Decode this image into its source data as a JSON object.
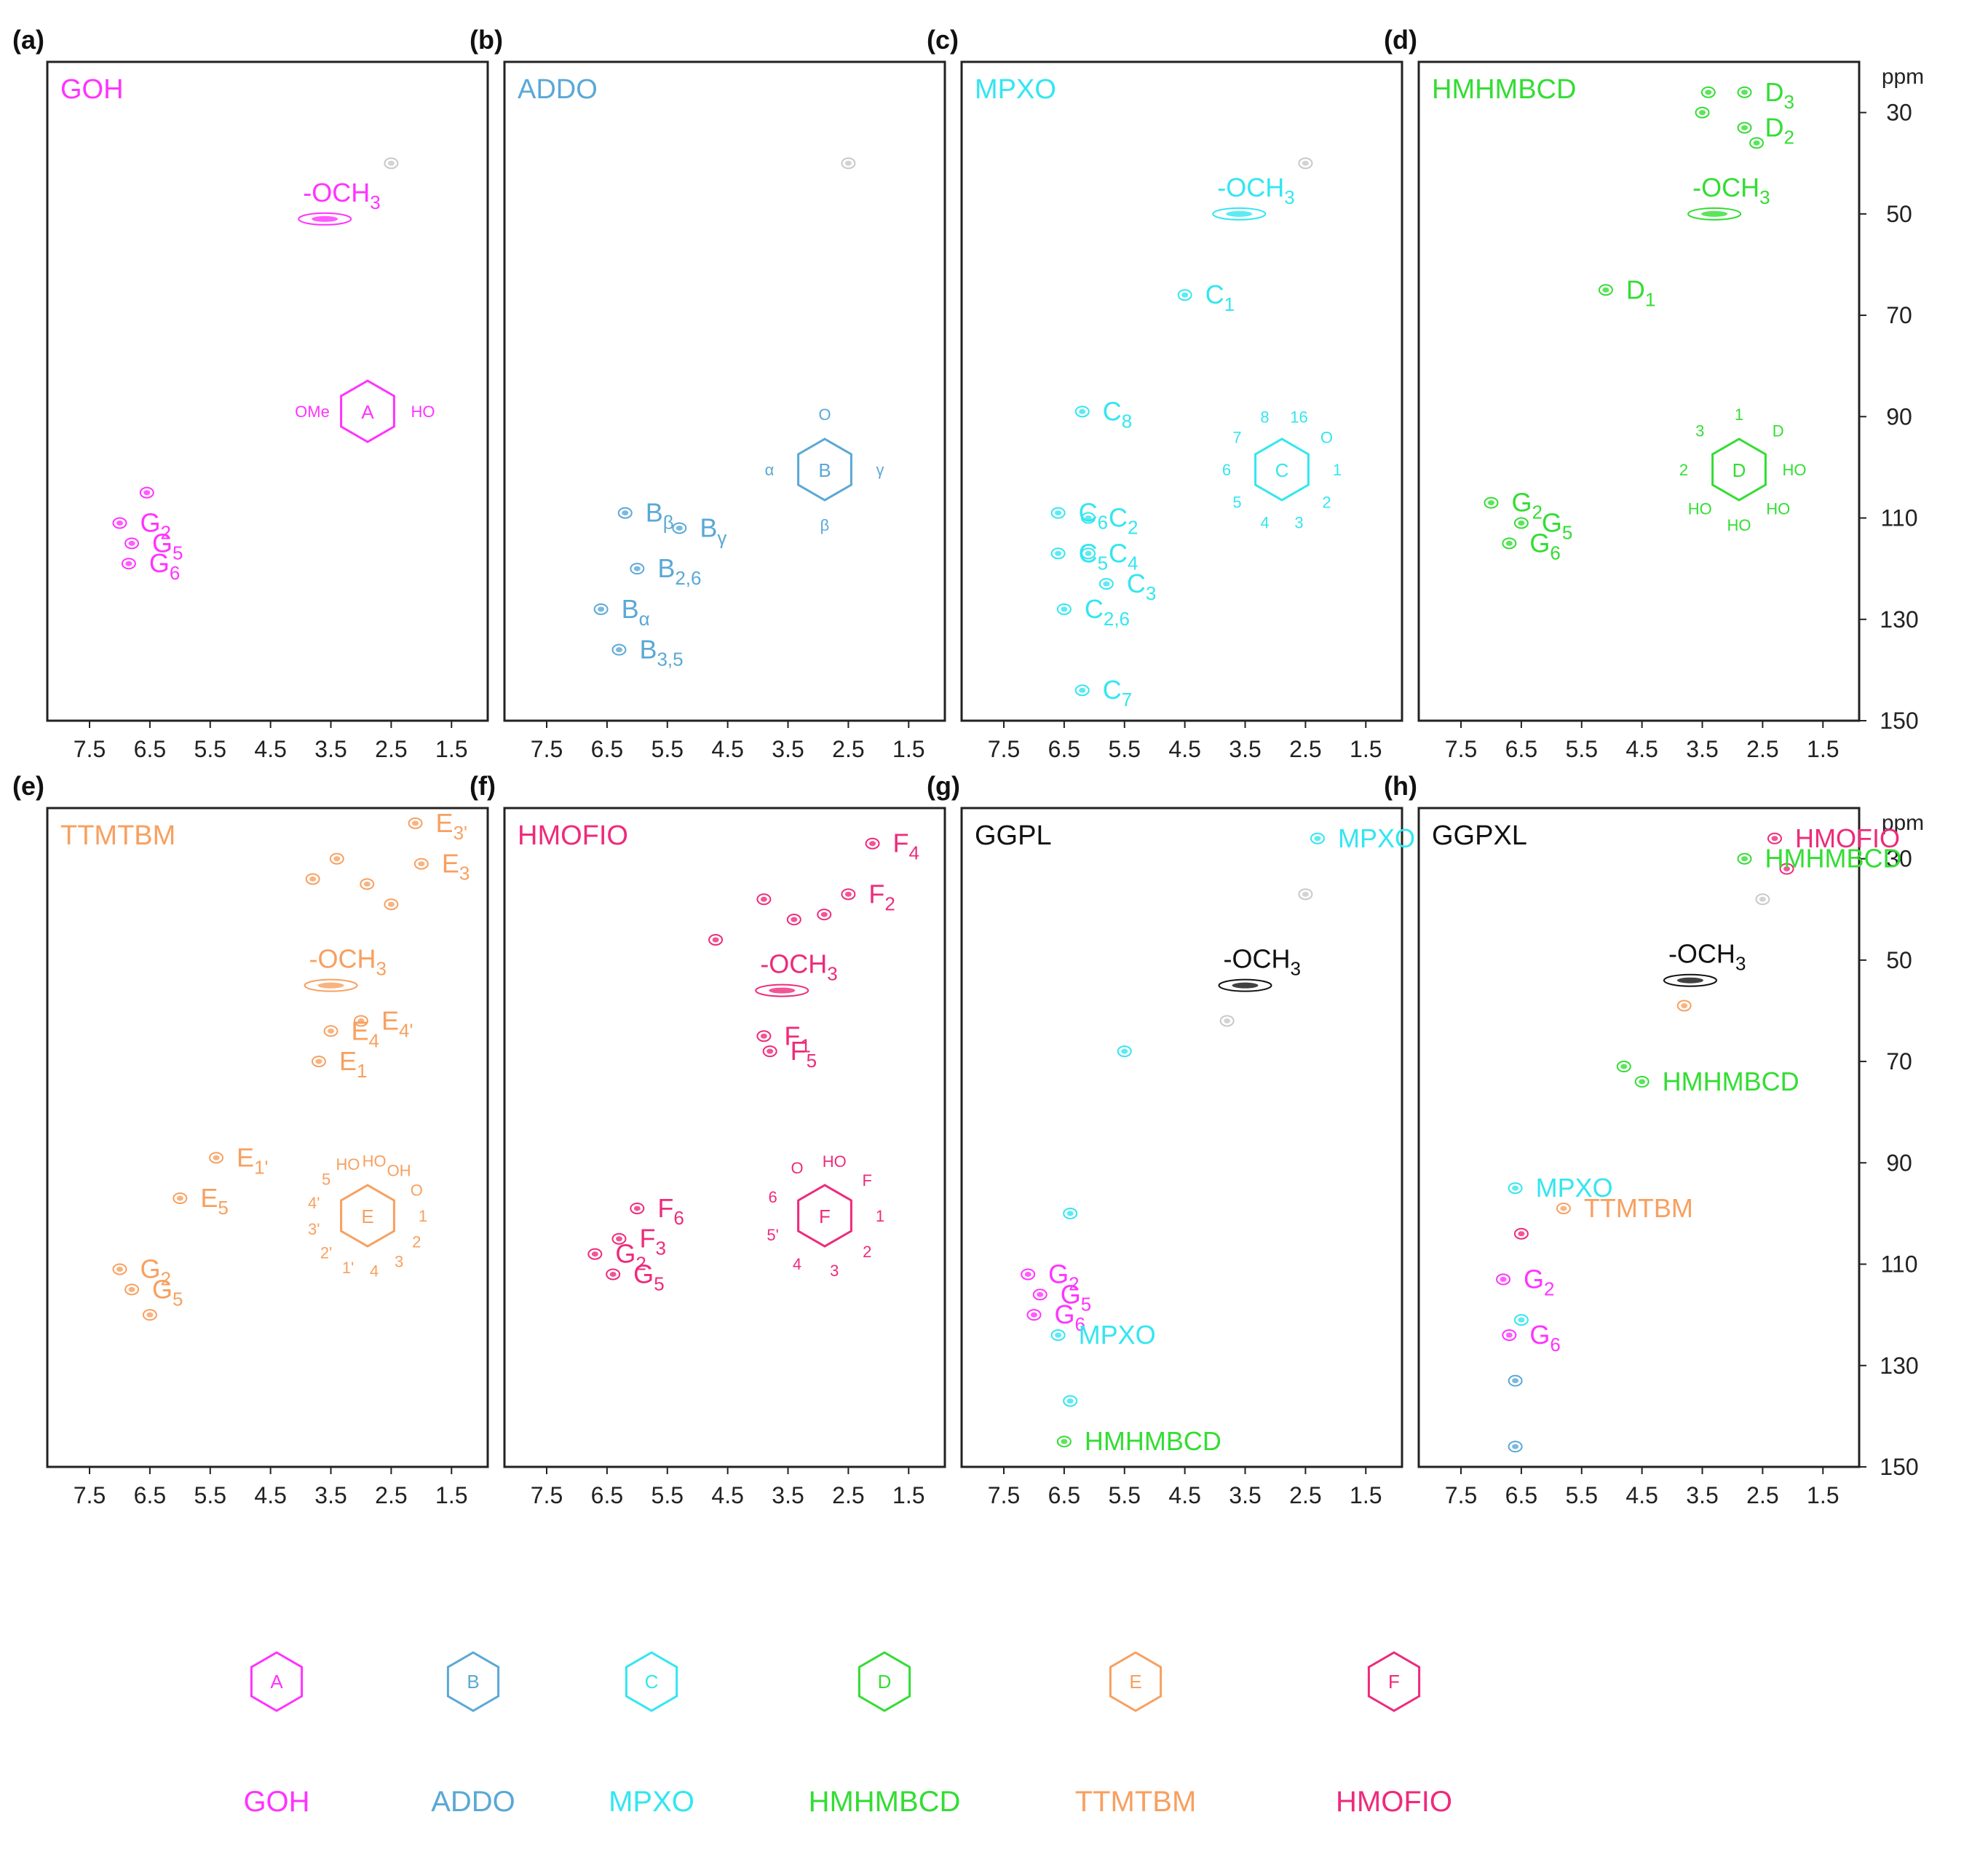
{
  "figure": {
    "ppm_unit": "ppm",
    "x_ticks": [
      7.5,
      6.5,
      5.5,
      4.5,
      3.5,
      2.5,
      1.5
    ],
    "y_ticks": [
      30,
      50,
      70,
      90,
      110,
      130,
      150
    ]
  },
  "colors": {
    "GOH": "#ff33ff",
    "ADDO": "#5aa8d6",
    "MPXO": "#33e6f0",
    "HMHMBCD": "#33dd33",
    "TTMTBM": "#f7a060",
    "HMOFIO": "#ee2a7b",
    "GGPL": "#111111",
    "GGPXL": "#111111",
    "solvent": "#c8c8c8"
  },
  "chart_data": [
    {
      "type": "scatter",
      "panel": "(a)",
      "title": "GOH",
      "xlabel": "",
      "ylabel": "ppm",
      "xlim": [
        8.2,
        0.9
      ],
      "ylim": [
        20,
        150
      ],
      "structure_label": "A",
      "structure_text": [
        "HO",
        "OMe"
      ],
      "peaks": [
        {
          "label": "-OCH3",
          "x": 3.6,
          "y": 51,
          "color": "GOH"
        },
        {
          "label": "G2",
          "x": 7.0,
          "y": 111,
          "color": "GOH"
        },
        {
          "label": "G5",
          "x": 6.8,
          "y": 115,
          "color": "GOH"
        },
        {
          "label": "G6",
          "x": 6.85,
          "y": 119,
          "color": "GOH"
        },
        {
          "label": "",
          "x": 6.55,
          "y": 105,
          "color": "GOH"
        },
        {
          "label": "",
          "x": 2.5,
          "y": 40,
          "color": "solvent"
        }
      ]
    },
    {
      "type": "scatter",
      "panel": "(b)",
      "title": "ADDO",
      "xlim": [
        8.2,
        0.9
      ],
      "ylim": [
        20,
        150
      ],
      "structure_label": "B",
      "structure_text": [
        "γ",
        "β",
        "α",
        "O"
      ],
      "peaks": [
        {
          "label": "Bβ",
          "x": 6.2,
          "y": 109,
          "color": "ADDO"
        },
        {
          "label": "Bγ",
          "x": 5.3,
          "y": 112,
          "color": "ADDO"
        },
        {
          "label": "B2,6",
          "x": 6.0,
          "y": 120,
          "color": "ADDO"
        },
        {
          "label": "Bα",
          "x": 6.6,
          "y": 128,
          "color": "ADDO"
        },
        {
          "label": "B3,5",
          "x": 6.3,
          "y": 136,
          "color": "ADDO"
        },
        {
          "label": "",
          "x": 2.5,
          "y": 40,
          "color": "solvent"
        }
      ]
    },
    {
      "type": "scatter",
      "panel": "(c)",
      "title": "MPXO",
      "xlim": [
        8.2,
        0.9
      ],
      "ylim": [
        20,
        150
      ],
      "structure_label": "C",
      "structure_text": [
        "1",
        "2",
        "3",
        "4",
        "5",
        "6",
        "7",
        "8",
        "16",
        "O"
      ],
      "peaks": [
        {
          "label": "-OCH3",
          "x": 3.6,
          "y": 50,
          "color": "MPXO"
        },
        {
          "label": "C1",
          "x": 4.5,
          "y": 66,
          "color": "MPXO"
        },
        {
          "label": "C8",
          "x": 6.2,
          "y": 89,
          "color": "MPXO"
        },
        {
          "label": "C6",
          "x": 6.6,
          "y": 109,
          "color": "MPXO"
        },
        {
          "label": "C2",
          "x": 6.1,
          "y": 110,
          "color": "MPXO"
        },
        {
          "label": "C5",
          "x": 6.6,
          "y": 117,
          "color": "MPXO"
        },
        {
          "label": "C4",
          "x": 6.1,
          "y": 117,
          "color": "MPXO"
        },
        {
          "label": "C3",
          "x": 5.8,
          "y": 123,
          "color": "MPXO"
        },
        {
          "label": "C2,6",
          "x": 6.5,
          "y": 128,
          "color": "MPXO"
        },
        {
          "label": "C7",
          "x": 6.2,
          "y": 144,
          "color": "MPXO"
        },
        {
          "label": "",
          "x": 2.5,
          "y": 40,
          "color": "solvent"
        }
      ]
    },
    {
      "type": "scatter",
      "panel": "(d)",
      "title": "HMHMBCD",
      "xlim": [
        8.2,
        0.9
      ],
      "ylim": [
        20,
        150
      ],
      "structure_label": "D",
      "structure_text": [
        "HO",
        "HO",
        "HO",
        "HO",
        "2",
        "3",
        "1",
        "D"
      ],
      "peaks": [
        {
          "label": "D3",
          "x": 2.8,
          "y": 26,
          "color": "HMHMBCD"
        },
        {
          "label": "D2",
          "x": 2.8,
          "y": 33,
          "color": "HMHMBCD"
        },
        {
          "label": "",
          "x": 3.4,
          "y": 26,
          "color": "HMHMBCD"
        },
        {
          "label": "",
          "x": 3.5,
          "y": 30,
          "color": "HMHMBCD"
        },
        {
          "label": "",
          "x": 2.6,
          "y": 36,
          "color": "HMHMBCD"
        },
        {
          "label": "-OCH3",
          "x": 3.3,
          "y": 50,
          "color": "HMHMBCD"
        },
        {
          "label": "D1",
          "x": 5.1,
          "y": 65,
          "color": "HMHMBCD"
        },
        {
          "label": "G2",
          "x": 7.0,
          "y": 107,
          "color": "HMHMBCD"
        },
        {
          "label": "G5",
          "x": 6.5,
          "y": 111,
          "color": "HMHMBCD"
        },
        {
          "label": "G6",
          "x": 6.7,
          "y": 115,
          "color": "HMHMBCD"
        }
      ]
    },
    {
      "type": "scatter",
      "panel": "(e)",
      "title": "TTMTBM",
      "xlim": [
        8.2,
        0.9
      ],
      "ylim": [
        20,
        150
      ],
      "structure_label": "E",
      "structure_text": [
        "1",
        "2",
        "3",
        "4",
        "1'",
        "2'",
        "3'",
        "4'",
        "5",
        "HO",
        "HO",
        "OH",
        "O"
      ],
      "peaks": [
        {
          "label": "E3'",
          "x": 2.1,
          "y": 23,
          "color": "TTMTBM"
        },
        {
          "label": "E3",
          "x": 2.0,
          "y": 31,
          "color": "TTMTBM"
        },
        {
          "label": "",
          "x": 3.4,
          "y": 30,
          "color": "TTMTBM"
        },
        {
          "label": "",
          "x": 3.8,
          "y": 34,
          "color": "TTMTBM"
        },
        {
          "label": "",
          "x": 2.9,
          "y": 35,
          "color": "TTMTBM"
        },
        {
          "label": "",
          "x": 2.5,
          "y": 39,
          "color": "TTMTBM"
        },
        {
          "label": "-OCH3",
          "x": 3.5,
          "y": 55,
          "color": "TTMTBM"
        },
        {
          "label": "E4",
          "x": 3.5,
          "y": 64,
          "color": "TTMTBM"
        },
        {
          "label": "E4'",
          "x": 3.0,
          "y": 62,
          "color": "TTMTBM"
        },
        {
          "label": "E1",
          "x": 3.7,
          "y": 70,
          "color": "TTMTBM"
        },
        {
          "label": "E1'",
          "x": 5.4,
          "y": 89,
          "color": "TTMTBM"
        },
        {
          "label": "E5",
          "x": 6.0,
          "y": 97,
          "color": "TTMTBM"
        },
        {
          "label": "G2",
          "x": 7.0,
          "y": 111,
          "color": "TTMTBM"
        },
        {
          "label": "G5",
          "x": 6.8,
          "y": 115,
          "color": "TTMTBM"
        },
        {
          "label": "",
          "x": 6.5,
          "y": 120,
          "color": "TTMTBM"
        }
      ]
    },
    {
      "type": "scatter",
      "panel": "(f)",
      "title": "HMOFIO",
      "xlim": [
        8.2,
        0.9
      ],
      "ylim": [
        20,
        150
      ],
      "structure_label": "F",
      "structure_text": [
        "1",
        "2",
        "3",
        "4",
        "5'",
        "6",
        "O",
        "HO",
        "F"
      ],
      "peaks": [
        {
          "label": "F4",
          "x": 2.1,
          "y": 27,
          "color": "HMOFIO"
        },
        {
          "label": "F2",
          "x": 2.5,
          "y": 37,
          "color": "HMOFIO"
        },
        {
          "label": "",
          "x": 3.9,
          "y": 38,
          "color": "HMOFIO"
        },
        {
          "label": "",
          "x": 3.4,
          "y": 42,
          "color": "HMOFIO"
        },
        {
          "label": "",
          "x": 2.9,
          "y": 41,
          "color": "HMOFIO"
        },
        {
          "label": "",
          "x": 4.7,
          "y": 46,
          "color": "HMOFIO"
        },
        {
          "label": "-OCH3",
          "x": 3.6,
          "y": 56,
          "color": "HMOFIO"
        },
        {
          "label": "F1",
          "x": 3.9,
          "y": 65,
          "color": "HMOFIO"
        },
        {
          "label": "F5",
          "x": 3.8,
          "y": 68,
          "color": "HMOFIO"
        },
        {
          "label": "F6",
          "x": 6.0,
          "y": 99,
          "color": "HMOFIO"
        },
        {
          "label": "F3",
          "x": 6.3,
          "y": 105,
          "color": "HMOFIO"
        },
        {
          "label": "G2",
          "x": 6.7,
          "y": 108,
          "color": "HMOFIO"
        },
        {
          "label": "G5",
          "x": 6.4,
          "y": 112,
          "color": "HMOFIO"
        }
      ]
    },
    {
      "type": "scatter",
      "panel": "(g)",
      "title": "GGPL",
      "xlim": [
        8.2,
        0.9
      ],
      "ylim": [
        20,
        150
      ],
      "peaks": [
        {
          "label": "MPXO",
          "x": 2.3,
          "y": 26,
          "color": "MPXO"
        },
        {
          "label": "-OCH3",
          "x": 3.5,
          "y": 55,
          "color": "GGPL"
        },
        {
          "label": "",
          "x": 2.5,
          "y": 37,
          "color": "solvent"
        },
        {
          "label": "",
          "x": 3.8,
          "y": 62,
          "color": "solvent"
        },
        {
          "label": "",
          "x": 5.5,
          "y": 68,
          "color": "MPXO"
        },
        {
          "label": "G2",
          "x": 7.1,
          "y": 112,
          "color": "GOH"
        },
        {
          "label": "G5",
          "x": 6.9,
          "y": 116,
          "color": "GOH"
        },
        {
          "label": "G6",
          "x": 7.0,
          "y": 120,
          "color": "GOH"
        },
        {
          "label": "MPXO",
          "x": 6.6,
          "y": 124,
          "color": "MPXO"
        },
        {
          "label": "",
          "x": 6.4,
          "y": 100,
          "color": "MPXO"
        },
        {
          "label": "",
          "x": 6.4,
          "y": 137,
          "color": "MPXO"
        },
        {
          "label": "HMHMBCD",
          "x": 6.5,
          "y": 145,
          "color": "HMHMBCD"
        }
      ]
    },
    {
      "type": "scatter",
      "panel": "(h)",
      "title": "GGPXL",
      "xlim": [
        8.2,
        0.9
      ],
      "ylim": [
        20,
        150
      ],
      "peaks": [
        {
          "label": "HMOFIO",
          "x": 2.3,
          "y": 26,
          "color": "HMOFIO"
        },
        {
          "label": "",
          "x": 2.1,
          "y": 32,
          "color": "HMOFIO"
        },
        {
          "label": "HMHMBCD",
          "x": 2.8,
          "y": 30,
          "color": "HMHMBCD"
        },
        {
          "label": "",
          "x": 2.5,
          "y": 38,
          "color": "solvent"
        },
        {
          "label": "-OCH3",
          "x": 3.7,
          "y": 54,
          "color": "GGPXL"
        },
        {
          "label": "",
          "x": 3.8,
          "y": 59,
          "color": "TTMTBM"
        },
        {
          "label": "",
          "x": 4.8,
          "y": 71,
          "color": "HMHMBCD"
        },
        {
          "label": "HMHMBCD",
          "x": 4.5,
          "y": 74,
          "color": "HMHMBCD"
        },
        {
          "label": "MPXO",
          "x": 6.6,
          "y": 95,
          "color": "MPXO"
        },
        {
          "label": "TTMTBM",
          "x": 5.8,
          "y": 99,
          "color": "TTMTBM"
        },
        {
          "label": "",
          "x": 6.5,
          "y": 104,
          "color": "HMOFIO"
        },
        {
          "label": "G2",
          "x": 6.8,
          "y": 113,
          "color": "GOH"
        },
        {
          "label": "",
          "x": 6.5,
          "y": 121,
          "color": "MPXO"
        },
        {
          "label": "G6",
          "x": 6.7,
          "y": 124,
          "color": "GOH"
        },
        {
          "label": "",
          "x": 6.6,
          "y": 133,
          "color": "ADDO"
        },
        {
          "label": "",
          "x": 6.6,
          "y": 146,
          "color": "ADDO"
        }
      ]
    }
  ],
  "legend": {
    "items": [
      {
        "name": "GOH",
        "color": "GOH",
        "structure_label": "A"
      },
      {
        "name": "ADDO",
        "color": "ADDO",
        "structure_label": "B"
      },
      {
        "name": "MPXO",
        "color": "MPXO",
        "structure_label": "C"
      },
      {
        "name": "HMHMBCD",
        "color": "HMHMBCD",
        "structure_label": "D"
      },
      {
        "name": "TTMTBM",
        "color": "TTMTBM",
        "structure_label": "E"
      },
      {
        "name": "HMOFIO",
        "color": "HMOFIO",
        "structure_label": "F"
      }
    ]
  }
}
